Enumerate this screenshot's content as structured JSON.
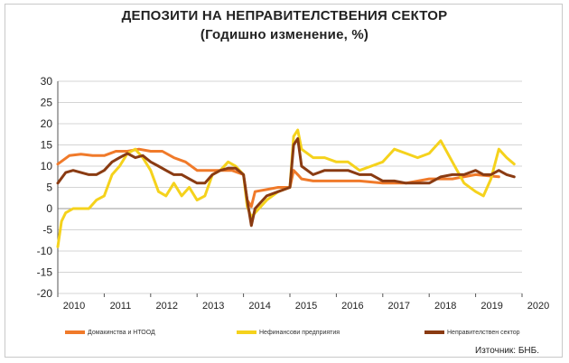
{
  "header": {
    "title": "ДЕПОЗИТИ НА НЕПРАВИТЕЛСТВЕНИЯ СЕКТОР",
    "subtitle": "(Годишно изменение, %)"
  },
  "source": "Източник: БНБ.",
  "colors": {
    "households": "#f07a2a",
    "nonfinancial": "#f5d21c",
    "nongov": "#8a3b12",
    "grid": "#d4d4d4",
    "axis": "#555555"
  },
  "chart_data": {
    "type": "line",
    "title": "ДЕПОЗИТИ НА НЕПРАВИТЕЛСТВЕНИЯ СЕКТОР",
    "subtitle": "(Годишно изменение, %)",
    "xlabel": "",
    "ylabel": "",
    "xlim": [
      2010,
      2020
    ],
    "ylim": [
      -20,
      30
    ],
    "yticks": [
      -20,
      -15,
      -10,
      -5,
      0,
      5,
      10,
      15,
      20,
      25,
      30
    ],
    "xtick_labels": [
      "2010",
      "2011",
      "2012",
      "2013",
      "2014",
      "2015",
      "2016",
      "2017",
      "2018",
      "2019",
      "2020"
    ],
    "grid": true,
    "legend_position": "bottom",
    "series": [
      {
        "name": "Домакинства и НТООД",
        "x": [
          2010,
          2010.25,
          2010.5,
          2010.75,
          2011,
          2011.25,
          2011.5,
          2011.75,
          2012,
          2012.25,
          2012.5,
          2012.75,
          2013,
          2013.25,
          2013.5,
          2013.75,
          2014,
          2014.08,
          2014.17,
          2014.25,
          2014.5,
          2014.75,
          2015,
          2015.08,
          2015.17,
          2015.25,
          2015.5,
          2015.75,
          2016,
          2016.5,
          2017,
          2017.5,
          2018,
          2018.5,
          2019,
          2019.5
        ],
        "values": [
          10.5,
          12.5,
          12.8,
          12.5,
          12.5,
          13.5,
          13.5,
          14,
          13.5,
          13.5,
          12,
          11,
          9,
          9,
          9,
          9,
          8,
          2,
          0.5,
          4,
          4.5,
          5,
          5,
          9,
          8,
          7,
          6.5,
          6.5,
          6.5,
          6.5,
          6,
          6,
          7,
          7,
          8,
          7.5
        ]
      },
      {
        "name": "Нефинансови предприятия",
        "x": [
          2010,
          2010.08,
          2010.17,
          2010.33,
          2010.5,
          2010.67,
          2010.83,
          2011,
          2011.17,
          2011.33,
          2011.5,
          2011.67,
          2011.83,
          2012,
          2012.17,
          2012.33,
          2012.5,
          2012.67,
          2012.83,
          2013,
          2013.17,
          2013.33,
          2013.5,
          2013.67,
          2013.83,
          2014,
          2014.08,
          2014.17,
          2014.25,
          2014.5,
          2014.75,
          2015,
          2015.08,
          2015.17,
          2015.25,
          2015.5,
          2015.75,
          2016,
          2016.25,
          2016.5,
          2016.75,
          2017,
          2017.25,
          2017.5,
          2017.75,
          2018,
          2018.25,
          2018.5,
          2018.75,
          2019,
          2019.17,
          2019.33,
          2019.5,
          2019.67,
          2019.83
        ],
        "values": [
          -9,
          -3,
          -1,
          0,
          0,
          0,
          2,
          3,
          8,
          10,
          13,
          14,
          12,
          9,
          4,
          3,
          6,
          3,
          5,
          2,
          3,
          8,
          9,
          11,
          10,
          8,
          0.5,
          -2,
          -1,
          2,
          4,
          5,
          17,
          18.5,
          14,
          12,
          12,
          11,
          11,
          9,
          10,
          11,
          14,
          13,
          12,
          13,
          16,
          11,
          6,
          4,
          3,
          7,
          14,
          12,
          10.5
        ]
      },
      {
        "name": "Неправителствен сектор",
        "x": [
          2010,
          2010.17,
          2010.33,
          2010.5,
          2010.67,
          2010.83,
          2011,
          2011.17,
          2011.33,
          2011.5,
          2011.67,
          2011.83,
          2012,
          2012.17,
          2012.33,
          2012.5,
          2012.67,
          2012.83,
          2013,
          2013.17,
          2013.33,
          2013.5,
          2013.67,
          2013.83,
          2014,
          2014.08,
          2014.17,
          2014.25,
          2014.5,
          2014.75,
          2015,
          2015.08,
          2015.17,
          2015.25,
          2015.5,
          2015.75,
          2016,
          2016.25,
          2016.5,
          2016.75,
          2017,
          2017.25,
          2017.5,
          2017.75,
          2018,
          2018.25,
          2018.5,
          2018.75,
          2019,
          2019.17,
          2019.33,
          2019.5,
          2019.67,
          2019.83
        ],
        "values": [
          6,
          8.5,
          9,
          8.5,
          8,
          8,
          9,
          11,
          12,
          13,
          12,
          12.5,
          11,
          10,
          9,
          8,
          8,
          7,
          6,
          6,
          8,
          9,
          9.5,
          9.5,
          8,
          2,
          -4,
          0,
          3,
          4,
          5,
          15,
          16.5,
          10,
          8,
          9,
          9,
          9,
          8,
          8,
          6.5,
          6.5,
          6,
          6,
          6,
          7.5,
          8,
          8,
          9,
          8,
          8,
          9,
          8,
          7.5
        ]
      }
    ]
  }
}
